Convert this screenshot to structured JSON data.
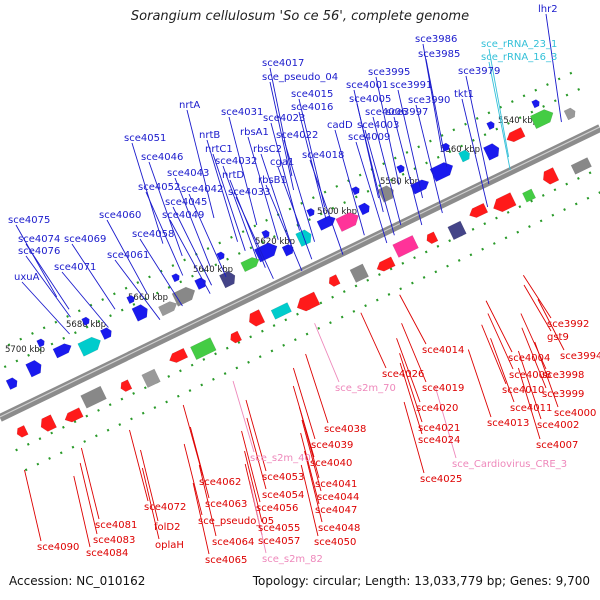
{
  "title": "Sorangium cellulosum 'So ce 56', complete genome",
  "footer": {
    "accession": "Accession: NC_010162",
    "summary": "Topology: circular; Length: 13,033,779 bp; Genes: 9,700"
  },
  "colors": {
    "top_label": "#1a1acc",
    "rna_label": "#33c0d8",
    "bottom_label": "#dd0000",
    "misc_label": "#ee88bb",
    "backbone": "#8c8c8c",
    "ticks_green": "#2a9a2a"
  },
  "kbp_labels": [
    "5540 kbp",
    "5560 kbp",
    "5580 kbp",
    "5600 kbp",
    "5620 kbp",
    "5640 kbp",
    "5660 kbp",
    "5680 kbp",
    "5700 kbp"
  ],
  "top_labels": [
    {
      "text": "lhr2",
      "color": "top_label"
    },
    {
      "text": "sce3986",
      "color": "top_label"
    },
    {
      "text": "sce3985",
      "color": "top_label"
    },
    {
      "text": "sce_rRNA_23_1",
      "color": "rna_label"
    },
    {
      "text": "sce_rRNA_16_3",
      "color": "rna_label"
    },
    {
      "text": "sce4017",
      "color": "top_label"
    },
    {
      "text": "sce_pseudo_04",
      "color": "top_label"
    },
    {
      "text": "sce3995",
      "color": "top_label"
    },
    {
      "text": "sce3979",
      "color": "top_label"
    },
    {
      "text": "sce4001",
      "color": "top_label"
    },
    {
      "text": "sce3991",
      "color": "top_label"
    },
    {
      "text": "sce4015",
      "color": "top_label"
    },
    {
      "text": "sce4005",
      "color": "top_label"
    },
    {
      "text": "sce3990",
      "color": "top_label"
    },
    {
      "text": "tkt1",
      "color": "top_label"
    },
    {
      "text": "nrtA",
      "color": "top_label"
    },
    {
      "text": "sce4016",
      "color": "top_label"
    },
    {
      "text": "sce4006",
      "color": "top_label"
    },
    {
      "text": "sce3997",
      "color": "top_label"
    },
    {
      "text": "sce4031",
      "color": "top_label"
    },
    {
      "text": "sce4023",
      "color": "top_label"
    },
    {
      "text": "cadD",
      "color": "top_label"
    },
    {
      "text": "sce4003",
      "color": "top_label"
    },
    {
      "text": "rbsA1",
      "color": "top_label"
    },
    {
      "text": "nrtB",
      "color": "top_label"
    },
    {
      "text": "sce4022",
      "color": "top_label"
    },
    {
      "text": "sce4009",
      "color": "top_label"
    },
    {
      "text": "sce4051",
      "color": "top_label"
    },
    {
      "text": "nrtC1",
      "color": "top_label"
    },
    {
      "text": "rbsC2",
      "color": "top_label"
    },
    {
      "text": "sce4046",
      "color": "top_label"
    },
    {
      "text": "sce4032",
      "color": "top_label"
    },
    {
      "text": "cga1",
      "color": "top_label"
    },
    {
      "text": "sce4018",
      "color": "top_label"
    },
    {
      "text": "sce4043",
      "color": "top_label"
    },
    {
      "text": "nrtD",
      "color": "top_label"
    },
    {
      "text": "rbsB1",
      "color": "top_label"
    },
    {
      "text": "sce4052",
      "color": "top_label"
    },
    {
      "text": "sce4042",
      "color": "top_label"
    },
    {
      "text": "sce4033",
      "color": "top_label"
    },
    {
      "text": "sce4045",
      "color": "top_label"
    },
    {
      "text": "sce4060",
      "color": "top_label"
    },
    {
      "text": "sce4049",
      "color": "top_label"
    },
    {
      "text": "sce4075",
      "color": "top_label"
    },
    {
      "text": "sce4058",
      "color": "top_label"
    },
    {
      "text": "sce4074",
      "color": "top_label"
    },
    {
      "text": "sce4069",
      "color": "top_label"
    },
    {
      "text": "sce4076",
      "color": "top_label"
    },
    {
      "text": "sce4061",
      "color": "top_label"
    },
    {
      "text": "uxuA",
      "color": "top_label"
    },
    {
      "text": "sce4071",
      "color": "top_label"
    }
  ],
  "bottom_labels": [
    {
      "text": "sce3992",
      "color": "bottom_label"
    },
    {
      "text": "gst9",
      "color": "bottom_label"
    },
    {
      "text": "sce4014",
      "color": "bottom_label"
    },
    {
      "text": "sce4004",
      "color": "bottom_label"
    },
    {
      "text": "sce3994",
      "color": "bottom_label"
    },
    {
      "text": "sce4026",
      "color": "bottom_label"
    },
    {
      "text": "sce4008",
      "color": "bottom_label"
    },
    {
      "text": "sce3998",
      "color": "bottom_label"
    },
    {
      "text": "sce_s2m_70",
      "color": "misc_label"
    },
    {
      "text": "sce4019",
      "color": "bottom_label"
    },
    {
      "text": "sce4010",
      "color": "bottom_label"
    },
    {
      "text": "sce3999",
      "color": "bottom_label"
    },
    {
      "text": "sce4020",
      "color": "bottom_label"
    },
    {
      "text": "sce4011",
      "color": "bottom_label"
    },
    {
      "text": "sce4000",
      "color": "bottom_label"
    },
    {
      "text": "sce4013",
      "color": "bottom_label"
    },
    {
      "text": "sce4002",
      "color": "bottom_label"
    },
    {
      "text": "sce4038",
      "color": "bottom_label"
    },
    {
      "text": "sce4021",
      "color": "bottom_label"
    },
    {
      "text": "sce4039",
      "color": "bottom_label"
    },
    {
      "text": "sce4024",
      "color": "bottom_label"
    },
    {
      "text": "sce4007",
      "color": "bottom_label"
    },
    {
      "text": "sce_s2m_40",
      "color": "misc_label"
    },
    {
      "text": "sce4040",
      "color": "bottom_label"
    },
    {
      "text": "sce_Cardiovirus_CRE_3",
      "color": "misc_label"
    },
    {
      "text": "sce4053",
      "color": "bottom_label"
    },
    {
      "text": "sce4041",
      "color": "bottom_label"
    },
    {
      "text": "sce4025",
      "color": "bottom_label"
    },
    {
      "text": "sce4062",
      "color": "bottom_label"
    },
    {
      "text": "sce4054",
      "color": "bottom_label"
    },
    {
      "text": "sce4044",
      "color": "bottom_label"
    },
    {
      "text": "sce4063",
      "color": "bottom_label"
    },
    {
      "text": "sce4056",
      "color": "bottom_label"
    },
    {
      "text": "sce4047",
      "color": "bottom_label"
    },
    {
      "text": "sce4072",
      "color": "bottom_label"
    },
    {
      "text": "sce_pseudo_05",
      "color": "bottom_label"
    },
    {
      "text": "sce4055",
      "color": "bottom_label"
    },
    {
      "text": "sce4048",
      "color": "bottom_label"
    },
    {
      "text": "sce4081",
      "color": "bottom_label"
    },
    {
      "text": "folD2",
      "color": "bottom_label"
    },
    {
      "text": "sce4057",
      "color": "bottom_label"
    },
    {
      "text": "sce4050",
      "color": "bottom_label"
    },
    {
      "text": "sce4083",
      "color": "bottom_label"
    },
    {
      "text": "sce4064",
      "color": "bottom_label"
    },
    {
      "text": "sce_s2m_82",
      "color": "misc_label"
    },
    {
      "text": "sce4090",
      "color": "bottom_label"
    },
    {
      "text": "sce4084",
      "color": "bottom_label"
    },
    {
      "text": "oplaH",
      "color": "bottom_label"
    },
    {
      "text": "sce4065",
      "color": "bottom_label"
    }
  ]
}
